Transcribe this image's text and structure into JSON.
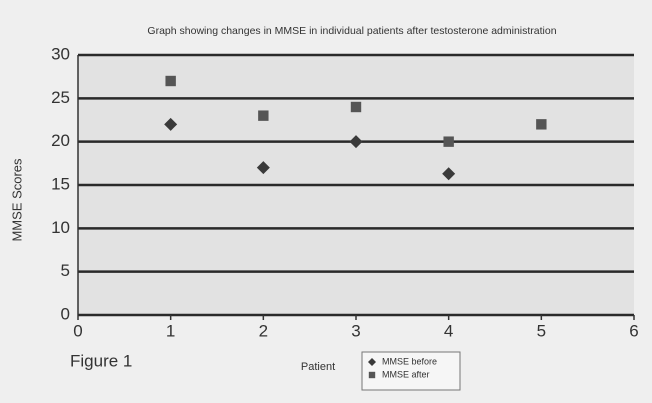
{
  "chart_data": {
    "type": "scatter",
    "title": "Graph showing changes in MMSE in individual patients after testosterone administration",
    "x_label": "Patient",
    "y_label": "MMSE Scores",
    "annotation": "Figure 1",
    "x": [
      1,
      2,
      3,
      4,
      5
    ],
    "series": [
      {
        "name": "MMSE before",
        "color": "#3a3a3a",
        "marker": "diamond",
        "values": [
          22,
          17,
          20,
          16.3,
          null
        ]
      },
      {
        "name": "MMSE after",
        "color": "#555555",
        "marker": "square",
        "values": [
          27,
          23,
          24,
          20,
          22
        ]
      }
    ],
    "xlim": [
      0,
      6
    ],
    "xticks": [
      0,
      1,
      2,
      3,
      4,
      5,
      6
    ],
    "ylim": [
      0,
      30
    ],
    "yticks": [
      0,
      5,
      10,
      15,
      20,
      25,
      30
    ],
    "grid": true,
    "legend": "bottom"
  }
}
